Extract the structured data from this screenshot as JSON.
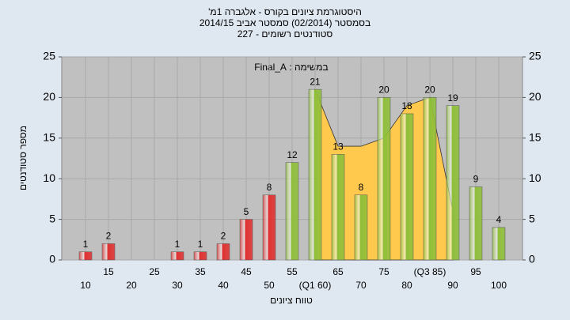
{
  "chart_data": {
    "type": "bar",
    "title": "היסטוגרמת ציונים בקורס - אלגברה 1מ'",
    "subtitle": "בסמסטר  (02/2014)  סמסטר אביב 2014/15",
    "subtitle2": "סטודנטים רשומים - 227",
    "annotation": "במשימה : Final_A",
    "y_label": "מספר סטודנטים",
    "x_label": "טווח ציונים",
    "categories": [
      "10",
      "15",
      "20",
      "25",
      "30",
      "35",
      "40",
      "45",
      "50",
      "55",
      "(Q1 60)",
      "65",
      "70",
      "75",
      "80",
      "(Q3 85)",
      "90",
      "95",
      "100"
    ],
    "values": [
      1,
      2,
      0,
      0,
      1,
      1,
      2,
      5,
      8,
      12,
      21,
      13,
      8,
      20,
      18,
      20,
      19,
      9,
      4
    ],
    "colors": [
      "#e03030",
      "#e03030",
      "#e03030",
      "#e03030",
      "#e03030",
      "#e03030",
      "#e03030",
      "#e03030",
      "#e03030",
      "#8fbf3a",
      "#8fbf3a",
      "#8fbf3a",
      "#8fbf3a",
      "#8fbf3a",
      "#8fbf3a",
      "#8fbf3a",
      "#8fbf3a",
      "#8fbf3a",
      "#8fbf3a"
    ],
    "area": {
      "color": "#ffc94d",
      "values": [
        null,
        null,
        null,
        null,
        null,
        null,
        null,
        null,
        null,
        null,
        21,
        14,
        14,
        15,
        19,
        20,
        6,
        null,
        null
      ]
    },
    "ylim": [
      0,
      25
    ],
    "yticks": [
      0,
      5,
      10,
      15,
      20,
      25
    ],
    "y2lim": [
      0,
      25
    ],
    "y2ticks": [
      0,
      5,
      10,
      15,
      20,
      25
    ],
    "grid": true
  }
}
